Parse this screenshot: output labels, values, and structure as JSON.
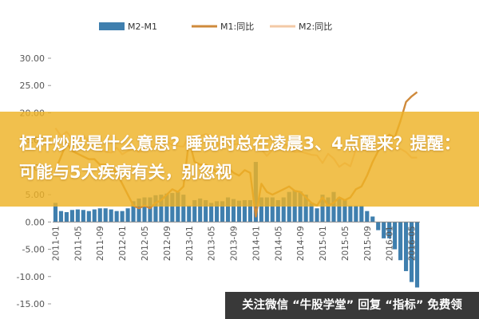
{
  "overlay": {
    "headline": "杠杆炒股是什么意思? 睡觉时总在凌晨3、4点醒来？提醒：可能与5大疾病有关，别忽视",
    "footer": "关注微信 “牛股学堂” 回复 “指标” 免费领"
  },
  "colors": {
    "bar": "#3f7fae",
    "m1_line": "#cf8a3b",
    "m2_line": "#f3c9a6",
    "axis_text": "#555555",
    "banner_bg": "#eeb226",
    "footer_bg": "#282828"
  },
  "chart_data": {
    "type": "bar",
    "title": "",
    "xlabel": "",
    "ylabel": "",
    "ylim": [
      -15,
      30
    ],
    "y_ticks": [
      "30.00",
      "25.00",
      "20.00",
      "15.00",
      "10.00",
      "5.00",
      "0.00",
      "-5.00",
      "-10.00",
      "-15.00"
    ],
    "x_ticks": [
      "2011-01",
      "2011-05",
      "2011-09",
      "2012-01",
      "2012-05",
      "2012-09",
      "2013-01",
      "2013-05",
      "2013-09",
      "2014-01",
      "2014-05",
      "2014-09",
      "2015-01",
      "2015-05",
      "2015-09",
      "2016-01",
      "2016-05"
    ],
    "legend": {
      "position": "top",
      "items": [
        "M2-M1",
        "M1:同比",
        "M2:同比"
      ]
    },
    "grid": false,
    "series": [
      {
        "name": "M2-M1",
        "type": "bar",
        "values": [
          3.5,
          2.0,
          1.8,
          2.2,
          2.3,
          2.2,
          2.0,
          2.3,
          2.5,
          2.5,
          2.3,
          2.0,
          2.0,
          2.5,
          3.8,
          4.3,
          4.5,
          4.5,
          4.9,
          5.0,
          5.2,
          5.3,
          5.5,
          5.0,
          3.0,
          4.0,
          4.3,
          4.0,
          3.5,
          3.8,
          3.8,
          4.5,
          4.2,
          3.9,
          4.0,
          4.0,
          11.0,
          4.5,
          4.5,
          4.5,
          4.0,
          4.5,
          5.5,
          5.8,
          5.6,
          5.0,
          3.5,
          2.5,
          5.0,
          4.5,
          5.5,
          4.5,
          4.0,
          3.0,
          3.0,
          3.0,
          2.0,
          1.0,
          -1.5,
          -3.0,
          -3.0,
          -5.0,
          -7.0,
          -9.0,
          -11.0,
          -12.0
        ]
      },
      {
        "name": "M1:同比",
        "type": "line",
        "values": [
          9.5,
          12.0,
          14.5,
          13.0,
          12.5,
          12.0,
          11.5,
          11.5,
          10.5,
          10.5,
          10.0,
          9.0,
          7.0,
          5.0,
          3.0,
          2.5,
          3.0,
          2.5,
          3.5,
          4.0,
          5.0,
          6.0,
          5.5,
          6.5,
          15.0,
          11.0,
          10.5,
          10.5,
          10.0,
          9.0,
          9.5,
          10.0,
          9.0,
          8.5,
          9.5,
          9.0,
          1.0,
          7.0,
          5.5,
          5.0,
          5.5,
          6.0,
          6.5,
          5.7,
          5.5,
          4.5,
          3.5,
          3.0,
          4.5,
          3.0,
          3.5,
          4.5,
          4.0,
          4.5,
          6.0,
          6.5,
          8.5,
          11.0,
          13.0,
          15.0,
          16.0,
          15.5,
          18.5,
          22.0,
          23.0,
          23.8
        ]
      },
      {
        "name": "M2:同比",
        "type": "line",
        "values": [
          17.2,
          15.7,
          16.5,
          15.3,
          15.1,
          15.9,
          14.7,
          13.6,
          13.1,
          12.9,
          12.7,
          13.6,
          12.4,
          13.0,
          13.4,
          12.8,
          13.2,
          13.6,
          13.9,
          13.5,
          14.8,
          14.1,
          13.9,
          13.8,
          15.9,
          15.2,
          15.7,
          16.1,
          15.8,
          14.0,
          14.5,
          14.7,
          14.2,
          14.3,
          14.2,
          13.6,
          13.2,
          13.3,
          12.1,
          13.2,
          13.4,
          14.7,
          13.5,
          12.8,
          12.9,
          12.6,
          12.3,
          12.2,
          10.8,
          12.5,
          11.6,
          10.1,
          10.8,
          10.2,
          13.3,
          13.3,
          13.1,
          13.5,
          13.7,
          13.3,
          14.0,
          13.3,
          13.4,
          12.8,
          11.8,
          11.8
        ]
      }
    ]
  }
}
